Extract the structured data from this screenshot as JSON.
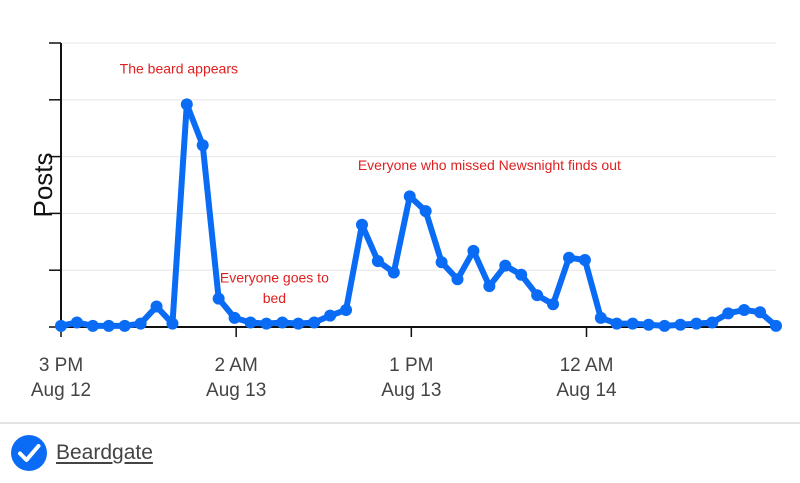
{
  "chart_data": {
    "type": "line",
    "title": "",
    "xlabel": "",
    "ylabel": "Posts",
    "x_ticks": [
      {
        "hour": 0,
        "line1": "3 PM",
        "line2": "Aug 12"
      },
      {
        "hour": 11,
        "line1": "2 AM",
        "line2": "Aug 13"
      },
      {
        "hour": 22,
        "line1": "1 PM",
        "line2": "Aug 13"
      },
      {
        "hour": 33,
        "line1": "12 AM",
        "line2": "Aug 14"
      }
    ],
    "series": [
      {
        "name": "Beardgate",
        "color": "#0a6cf5",
        "points": [
          [
            0,
            0.1
          ],
          [
            1,
            0.4
          ],
          [
            2,
            0.1
          ],
          [
            3,
            0.1
          ],
          [
            4,
            0.1
          ],
          [
            5,
            0.3
          ],
          [
            6,
            1.8
          ],
          [
            7,
            0.3
          ],
          [
            7.9,
            19.6
          ],
          [
            8.9,
            16
          ],
          [
            9.9,
            2.5
          ],
          [
            10.9,
            0.8
          ],
          [
            11.9,
            0.4
          ],
          [
            12.9,
            0.3
          ],
          [
            13.9,
            0.4
          ],
          [
            14.9,
            0.3
          ],
          [
            15.9,
            0.4
          ],
          [
            16.9,
            1
          ],
          [
            17.9,
            1.5
          ],
          [
            18.9,
            9
          ],
          [
            19.9,
            5.8
          ],
          [
            20.9,
            4.8
          ],
          [
            21.9,
            11.5
          ],
          [
            22.9,
            10.2
          ],
          [
            23.9,
            5.7
          ],
          [
            24.9,
            4.2
          ],
          [
            25.9,
            6.7
          ],
          [
            26.9,
            3.6
          ],
          [
            27.9,
            5.4
          ],
          [
            28.9,
            4.6
          ],
          [
            29.9,
            2.8
          ],
          [
            30.9,
            2
          ],
          [
            31.9,
            6.1
          ],
          [
            32.9,
            5.9
          ],
          [
            33.9,
            0.8
          ],
          [
            34.9,
            0.3
          ],
          [
            35.9,
            0.3
          ],
          [
            36.9,
            0.2
          ],
          [
            37.9,
            0.1
          ],
          [
            38.9,
            0.2
          ],
          [
            39.9,
            0.3
          ],
          [
            40.9,
            0.4
          ],
          [
            41.9,
            1.2
          ],
          [
            42.9,
            1.5
          ],
          [
            43.9,
            1.3
          ],
          [
            44.9,
            0.1
          ]
        ]
      }
    ],
    "xlim": [
      0,
      44.9
    ],
    "ylim": [
      0,
      25
    ],
    "y_gridlines": [
      0,
      5,
      10,
      15,
      20,
      25
    ],
    "grid": true,
    "annotations": [
      {
        "text": "The beard appears",
        "hour": 7.4,
        "value": 22.3,
        "color": "#e02020"
      },
      {
        "text": "Everyone goes to",
        "hour": 13.4,
        "value": 3.9,
        "color": "#e02020"
      },
      {
        "text": "bed",
        "hour": 13.4,
        "value": 2.1,
        "color": "#e02020"
      },
      {
        "text": "Everyone who missed Newsnight finds out",
        "hour": 26.9,
        "value": 13.8,
        "color": "#e02020"
      }
    ],
    "legend": {
      "position": "bottom-left",
      "label": "Beardgate",
      "icon": "checkmark-circle-icon",
      "color": "#0a6cf5"
    }
  }
}
